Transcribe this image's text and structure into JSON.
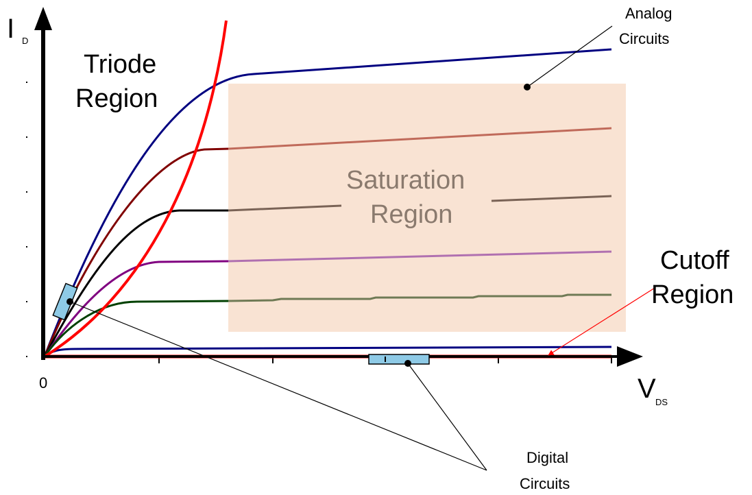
{
  "axes": {
    "y_label": "I",
    "y_label_sub": "D",
    "x_label": "V",
    "x_label_sub": "DS",
    "origin": "0"
  },
  "regions": {
    "triode_line1": "Triode",
    "triode_line2": "Region",
    "saturation_line1": "Saturation",
    "saturation_line2": "Region",
    "cutoff_line1": "Cutoff",
    "cutoff_line2": "Region"
  },
  "annotations": {
    "analog_line1": "Analog",
    "analog_line2": "Circuits",
    "digital_line1": "Digital",
    "digital_line2": "Circuits"
  },
  "colors": {
    "axis": "#000000",
    "boundary": "#ff0000",
    "saturation_fill": "#f9e3d3",
    "curve_top": "#000080",
    "curve_2": "#800000",
    "curve_2_sat": "#c06a5a",
    "curve_3": "#000000",
    "curve_3_sat": "#7a6356",
    "curve_4": "#800080",
    "curve_4_sat": "#b070b0",
    "curve_5": "#004000",
    "curve_5_sat": "#6f7a55",
    "curve_bottom": "#000080",
    "digital_box": "#8ecae6"
  }
}
